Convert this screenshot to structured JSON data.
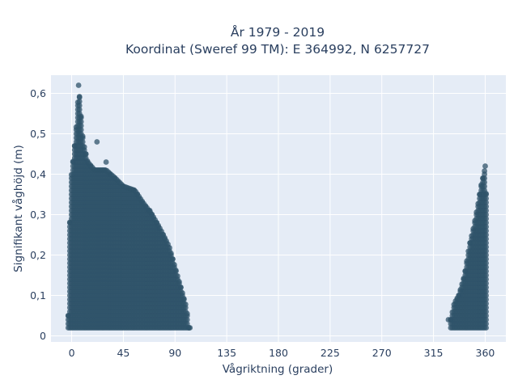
{
  "chart_data": {
    "type": "scatter",
    "title_line1": "År 1979 - 2019",
    "title_line2": "Koordinat (Sweref 99 TM): E 364992, N 6257727",
    "xlabel": "Vågriktning (grader)",
    "ylabel": "Signifikant våghöjd (m)",
    "xlim": [
      -18,
      378
    ],
    "ylim": [
      -0.015,
      0.645
    ],
    "x_ticks": [
      0,
      45,
      90,
      135,
      180,
      225,
      270,
      315,
      360
    ],
    "x_tick_labels": [
      "0",
      "45",
      "90",
      "135",
      "180",
      "225",
      "270",
      "315",
      "360"
    ],
    "y_ticks": [
      0,
      0.1,
      0.2,
      0.3,
      0.4,
      0.5,
      0.6
    ],
    "y_tick_labels": [
      "0",
      "0,1",
      "0,2",
      "0,3",
      "0,4",
      "0,5",
      "0,6"
    ],
    "grid": true,
    "background": "#e5ecf6",
    "marker_color": "#2f5369",
    "clusters": [
      {
        "name": "",
        "x_range": [
          -3,
          102
        ],
        "y_min": 0.02,
        "upper_envelope": [
          [
            -3,
            0.05
          ],
          [
            -1,
            0.38
          ],
          [
            2,
            0.45
          ],
          [
            5,
            0.55
          ],
          [
            6,
            0.62
          ],
          [
            8,
            0.55
          ],
          [
            10,
            0.48
          ],
          [
            14,
            0.43
          ],
          [
            20,
            0.41
          ],
          [
            30,
            0.41
          ],
          [
            38,
            0.39
          ],
          [
            45,
            0.37
          ],
          [
            55,
            0.36
          ],
          [
            62,
            0.33
          ],
          [
            70,
            0.3
          ],
          [
            78,
            0.26
          ],
          [
            85,
            0.22
          ],
          [
            90,
            0.17
          ],
          [
            95,
            0.12
          ],
          [
            100,
            0.07
          ],
          [
            102,
            0.02
          ]
        ]
      },
      {
        "name": "",
        "x_range": [
          330,
          362
        ],
        "y_min": 0.02,
        "upper_envelope": [
          [
            330,
            0.04
          ],
          [
            333,
            0.08
          ],
          [
            337,
            0.1
          ],
          [
            342,
            0.15
          ],
          [
            346,
            0.22
          ],
          [
            350,
            0.27
          ],
          [
            354,
            0.33
          ],
          [
            357,
            0.38
          ],
          [
            359,
            0.4
          ],
          [
            360,
            0.42
          ],
          [
            362,
            0.25
          ]
        ]
      }
    ],
    "outliers": [
      {
        "x": 6,
        "y": 0.62
      },
      {
        "x": 30,
        "y": 0.43
      },
      {
        "x": 360,
        "y": 0.42
      },
      {
        "x": 22,
        "y": 0.48
      },
      {
        "x": 68,
        "y": 0.31
      },
      {
        "x": 103,
        "y": 0.02
      },
      {
        "x": 328,
        "y": 0.04
      }
    ]
  }
}
